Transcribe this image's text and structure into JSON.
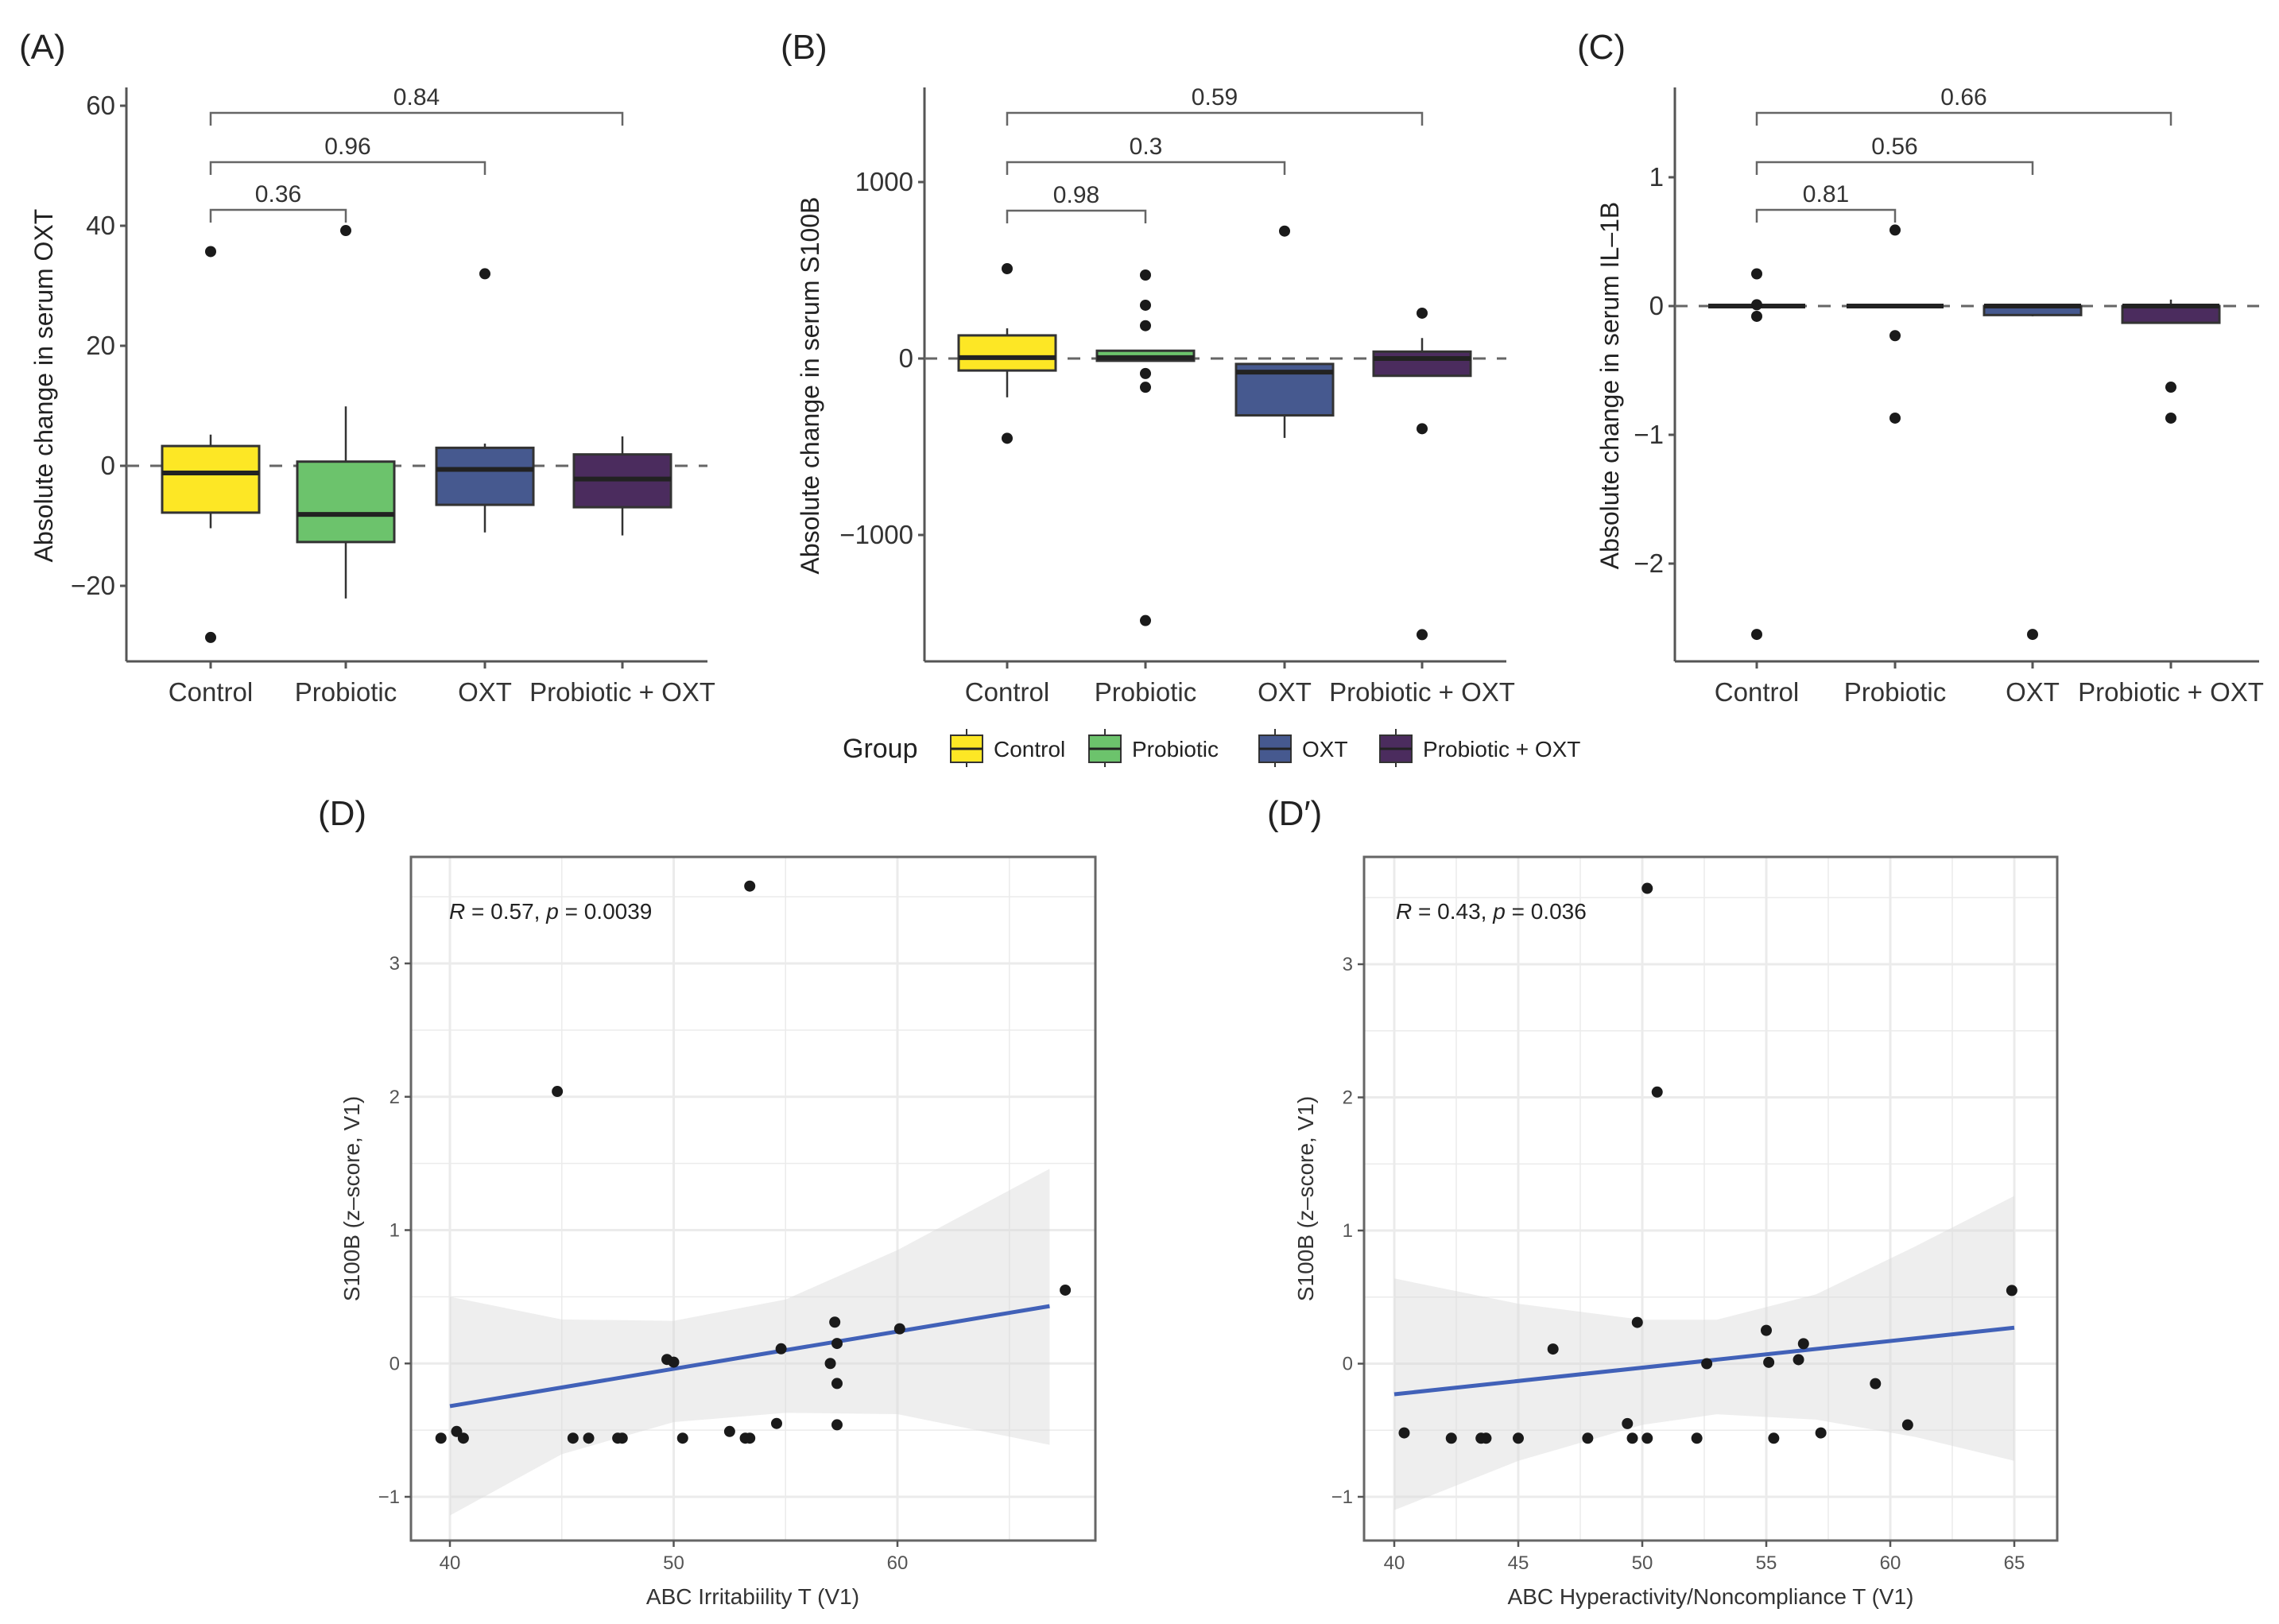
{
  "figure": {
    "legend": {
      "title": "Group",
      "items": [
        {
          "label": "Control",
          "color": "#FDE725"
        },
        {
          "label": "Probiotic",
          "color": "#6CC36C"
        },
        {
          "label": "OXT",
          "color": "#46598F"
        },
        {
          "label": "Probiotic + OXT",
          "color": "#4B2C5E"
        }
      ]
    }
  },
  "chart_data": [
    {
      "panel": "(A)",
      "type": "box",
      "ylabel": "Absolute change in serum OXT",
      "xlabel": "",
      "categories": [
        "Control",
        "Probiotic",
        "OXT",
        "Probiotic + OXT"
      ],
      "yticks": [
        -20,
        0,
        20,
        40,
        60
      ],
      "ylim": [
        -31,
        63
      ],
      "reference_line": 0,
      "boxes": [
        {
          "group": "Control",
          "q1": -7.8,
          "median": -1.2,
          "q3": 3.3,
          "whisker_low": -10.4,
          "whisker_high": 5.2,
          "outliers": [
            35.7,
            -28.6
          ]
        },
        {
          "group": "Probiotic",
          "q1": -12.7,
          "median": -8.1,
          "q3": 0.7,
          "whisker_low": -22.1,
          "whisker_high": 9.9,
          "outliers": [
            39.2
          ]
        },
        {
          "group": "OXT",
          "q1": -6.5,
          "median": -0.6,
          "q3": 3.0,
          "whisker_low": -11.1,
          "whisker_high": 3.7,
          "outliers": [
            32.0
          ]
        },
        {
          "group": "Probiotic + OXT",
          "q1": -6.9,
          "median": -2.2,
          "q3": 1.9,
          "whisker_low": -11.6,
          "whisker_high": 4.9,
          "outliers": []
        }
      ],
      "comparisons": [
        {
          "from": "Control",
          "to": "Probiotic",
          "p": "0.36"
        },
        {
          "from": "Control",
          "to": "OXT",
          "p": "0.96"
        },
        {
          "from": "Control",
          "to": "Probiotic + OXT",
          "p": "0.84"
        }
      ]
    },
    {
      "panel": "(B)",
      "type": "box",
      "ylabel": "Absolute change in serum S100B",
      "xlabel": "",
      "categories": [
        "Control",
        "Probiotic",
        "OXT",
        "Probiotic + OXT"
      ],
      "yticks": [
        -1000,
        0,
        1000
      ],
      "ylim": [
        -1735,
        1540
      ],
      "reference_line": 0,
      "boxes": [
        {
          "group": "Control",
          "q1": -68,
          "median": 5,
          "q3": 131,
          "whisker_low": -220,
          "whisker_high": 171,
          "outliers": [
            509,
            -452
          ]
        },
        {
          "group": "Probiotic",
          "q1": -13,
          "median": 5,
          "q3": 44,
          "whisker_low": -13,
          "whisker_high": 44,
          "outliers": [
            473,
            302,
            186,
            -85,
            -163,
            -1485
          ]
        },
        {
          "group": "OXT",
          "q1": -322,
          "median": -77,
          "q3": -31,
          "whisker_low": -450,
          "whisker_high": -31,
          "outliers": [
            722
          ]
        },
        {
          "group": "Probiotic + OXT",
          "q1": -98,
          "median": 0,
          "q3": 39,
          "whisker_low": -98,
          "whisker_high": 116,
          "outliers": [
            257,
            -398,
            -1565
          ]
        }
      ],
      "comparisons": [
        {
          "from": "Control",
          "to": "Probiotic",
          "p": "0.98"
        },
        {
          "from": "Control",
          "to": "OXT",
          "p": "0.3"
        },
        {
          "from": "Control",
          "to": "Probiotic + OXT",
          "p": "0.59"
        }
      ]
    },
    {
      "panel": "(C)",
      "type": "box",
      "ylabel": "Absolute change in serum IL–1B",
      "xlabel": "",
      "categories": [
        "Control",
        "Probiotic",
        "OXT",
        "Probiotic + OXT"
      ],
      "yticks": [
        -2,
        -1,
        0,
        1
      ],
      "ylim": [
        -2.78,
        1.7
      ],
      "reference_line": 0,
      "boxes": [
        {
          "group": "Control",
          "q1": 0,
          "median": 0,
          "q3": 0,
          "whisker_low": 0,
          "whisker_high": 0,
          "outliers": [
            0.25,
            0.01,
            -0.08,
            -2.55
          ]
        },
        {
          "group": "Probiotic",
          "q1": 0,
          "median": 0,
          "q3": 0,
          "whisker_low": 0,
          "whisker_high": 0,
          "outliers": [
            0.59,
            -0.23,
            -0.87
          ]
        },
        {
          "group": "OXT",
          "q1": -0.07,
          "median": 0,
          "q3": 0,
          "whisker_low": -0.08,
          "whisker_high": 0,
          "outliers": [
            -2.55
          ]
        },
        {
          "group": "Probiotic + OXT",
          "q1": -0.13,
          "median": 0,
          "q3": 0,
          "whisker_low": -0.13,
          "whisker_high": 0.05,
          "outliers": [
            -0.63,
            -0.87
          ]
        }
      ],
      "comparisons": [
        {
          "from": "Control",
          "to": "Probiotic",
          "p": "0.81"
        },
        {
          "from": "Control",
          "to": "OXT",
          "p": "0.56"
        },
        {
          "from": "Control",
          "to": "Probiotic + OXT",
          "p": "0.66"
        }
      ]
    },
    {
      "panel": "(D)",
      "type": "scatter",
      "xlabel": "ABC Irritabiility T (V1)",
      "ylabel": "S100B (z–score, V1)",
      "annotation": {
        "r_label": "R",
        "r_value": "0.57",
        "p_label": "p",
        "p_value": "0.0039"
      },
      "xticks": [
        40,
        50,
        60
      ],
      "yticks": [
        -1,
        0,
        1,
        2,
        3
      ],
      "xlim": [
        38.2,
        68.8
      ],
      "ylim": [
        -1.34,
        3.8
      ],
      "grid": true,
      "points": [
        {
          "x": 39.6,
          "y": -0.56
        },
        {
          "x": 40.3,
          "y": -0.51
        },
        {
          "x": 40.6,
          "y": -0.56
        },
        {
          "x": 44.8,
          "y": 2.04
        },
        {
          "x": 45.5,
          "y": -0.56
        },
        {
          "x": 46.2,
          "y": -0.56
        },
        {
          "x": 47.5,
          "y": -0.56
        },
        {
          "x": 47.7,
          "y": -0.56
        },
        {
          "x": 49.7,
          "y": 0.03
        },
        {
          "x": 50.0,
          "y": 0.01
        },
        {
          "x": 50.4,
          "y": -0.56
        },
        {
          "x": 52.5,
          "y": -0.51
        },
        {
          "x": 53.2,
          "y": -0.56
        },
        {
          "x": 53.4,
          "y": -0.56
        },
        {
          "x": 53.4,
          "y": 3.58
        },
        {
          "x": 54.6,
          "y": -0.45
        },
        {
          "x": 54.8,
          "y": 0.11
        },
        {
          "x": 57.0,
          "y": 0.0
        },
        {
          "x": 57.2,
          "y": 0.31
        },
        {
          "x": 57.3,
          "y": 0.15
        },
        {
          "x": 57.3,
          "y": -0.15
        },
        {
          "x": 57.3,
          "y": -0.46
        },
        {
          "x": 60.1,
          "y": 0.26
        },
        {
          "x": 67.5,
          "y": 0.55
        }
      ],
      "fit": {
        "x": [
          40.0,
          66.8
        ],
        "y": [
          -0.32,
          0.43
        ],
        "color": "#4161B8"
      },
      "ci_band": {
        "x": [
          40,
          45,
          50,
          55,
          60,
          66.8
        ],
        "upper": [
          0.5,
          0.33,
          0.32,
          0.48,
          0.85,
          1.46
        ],
        "lower": [
          -1.14,
          -0.68,
          -0.44,
          -0.37,
          -0.38,
          -0.61
        ]
      }
    },
    {
      "panel": "(D′)",
      "type": "scatter",
      "xlabel": "ABC Hyperactivity/Noncompliance T (V1)",
      "ylabel": "S100B (z–score, V1)",
      "annotation": {
        "r_label": "R",
        "r_value": "0.43",
        "p_label": "p",
        "p_value": "0.036"
      },
      "xticks": [
        40,
        45,
        50,
        55,
        60,
        65
      ],
      "yticks": [
        -1,
        0,
        1,
        2,
        3
      ],
      "xlim": [
        38.8,
        66.2
      ],
      "ylim": [
        -1.34,
        3.8
      ],
      "grid": true,
      "points": [
        {
          "x": 40.4,
          "y": -0.52
        },
        {
          "x": 42.3,
          "y": -0.56
        },
        {
          "x": 43.5,
          "y": -0.56
        },
        {
          "x": 43.7,
          "y": -0.56
        },
        {
          "x": 45.0,
          "y": -0.56
        },
        {
          "x": 46.4,
          "y": 0.11
        },
        {
          "x": 47.8,
          "y": -0.56
        },
        {
          "x": 49.4,
          "y": -0.45
        },
        {
          "x": 49.6,
          "y": -0.56
        },
        {
          "x": 49.8,
          "y": 0.31
        },
        {
          "x": 50.2,
          "y": -0.56
        },
        {
          "x": 50.2,
          "y": 3.57
        },
        {
          "x": 50.6,
          "y": 2.04
        },
        {
          "x": 52.2,
          "y": -0.56
        },
        {
          "x": 52.6,
          "y": 0.0
        },
        {
          "x": 55.0,
          "y": 0.25
        },
        {
          "x": 55.1,
          "y": 0.01
        },
        {
          "x": 55.3,
          "y": -0.56
        },
        {
          "x": 56.3,
          "y": 0.03
        },
        {
          "x": 56.5,
          "y": 0.15
        },
        {
          "x": 57.2,
          "y": -0.52
        },
        {
          "x": 59.4,
          "y": -0.15
        },
        {
          "x": 60.7,
          "y": -0.46
        },
        {
          "x": 64.9,
          "y": 0.55
        }
      ],
      "fit": {
        "x": [
          40.0,
          65.0
        ],
        "y": [
          -0.23,
          0.27
        ],
        "color": "#4161B8"
      },
      "ci_band": {
        "x": [
          40,
          45,
          50,
          53,
          57,
          61,
          65
        ],
        "upper": [
          0.64,
          0.45,
          0.33,
          0.33,
          0.52,
          0.88,
          1.26
        ],
        "lower": [
          -1.1,
          -0.73,
          -0.46,
          -0.38,
          -0.42,
          -0.55,
          -0.73
        ]
      }
    }
  ]
}
